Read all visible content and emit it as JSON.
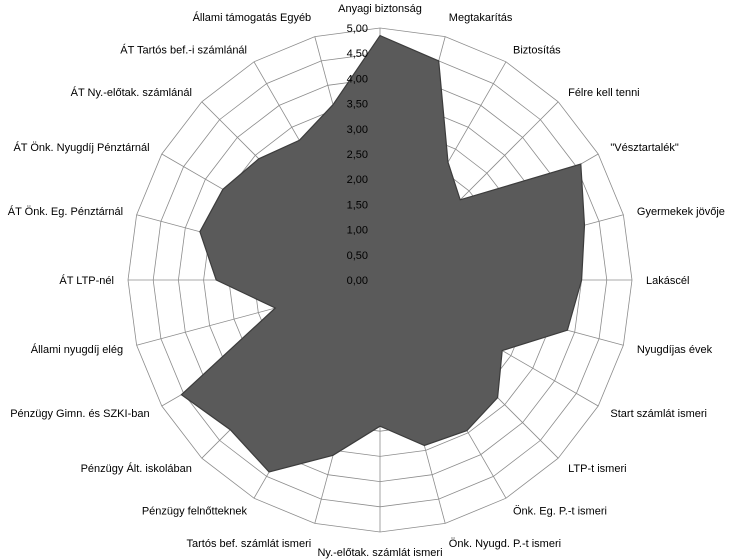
{
  "chart_data": {
    "type": "radar",
    "title": "",
    "categories": [
      "Anyagi biztonság",
      "Megtakarítás",
      "Biztosítás",
      "Félre kell tenni",
      "\"Vésztartalék\"",
      "Gyermekek jövője",
      "Lakáscél",
      "Nyugdíjas évek",
      "Start számlát  ismeri",
      "LTP-t ismeri",
      "Önk. Eg. P.-t ismeri",
      "Önk. Nyugd.  P.-t ismeri",
      "Ny.-előtak. számlát  ismeri",
      "Tartós bef. számlát  ismeri",
      "Pénzügy felnőtteknek",
      "Pénzügy Ált. iskolában",
      "Pénzügy Gimn.  és SZKI-ban",
      "Állami nyugdíj elég",
      "ÁT  LTP-nél",
      "ÁT Önk. Eg.  Pénztárnál",
      "ÁT Önk. Nyugdíj  Pénztárnál",
      "ÁT Ny.-előtak.  számlánál",
      "ÁT Tartós bef.-i  számlánál",
      "Állami támogatás  Egyéb"
    ],
    "values": [
      4.85,
      4.5,
      2.7,
      2.25,
      4.6,
      4.2,
      4.0,
      3.85,
      2.8,
      3.3,
      3.45,
      3.4,
      2.9,
      3.6,
      4.4,
      4.2,
      4.55,
      2.15,
      3.25,
      3.7,
      3.6,
      3.4,
      3.2,
      3.6
    ],
    "ylim": [
      0,
      5
    ],
    "ticks": [
      "0,00",
      "0,50",
      "1,00",
      "1,50",
      "2,00",
      "2,50",
      "3,00",
      "3,50",
      "4,00",
      "4,50",
      "5,00"
    ],
    "tick_values": [
      0,
      0.5,
      1,
      1.5,
      2,
      2.5,
      3,
      3.5,
      4,
      4.5,
      5
    ],
    "grid": true,
    "legend": "none",
    "colors": {
      "fill": "#5a5a5a",
      "stroke": "#3c3c3c",
      "grid": "#8c8c8c",
      "text": "#000000"
    }
  }
}
